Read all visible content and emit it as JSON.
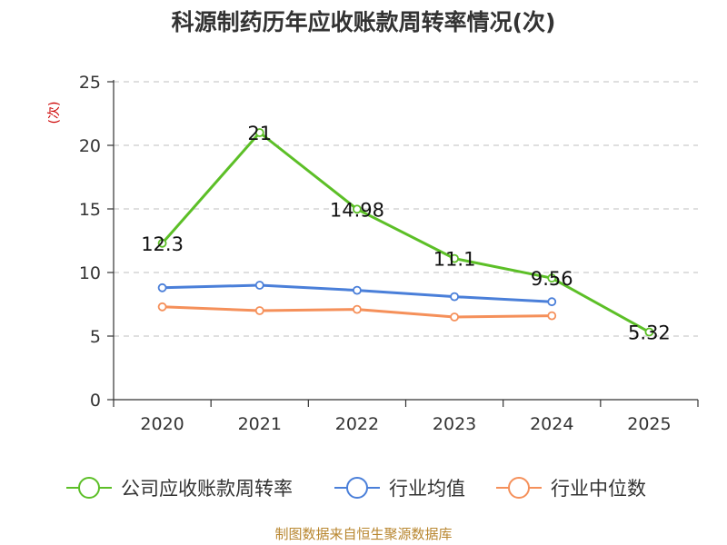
{
  "chart_data": {
    "type": "line",
    "title": "科源制药历年应收账款周转率情况(次)",
    "ylabel": "(次)",
    "xlabel": "",
    "categories": [
      "2020",
      "2021",
      "2022",
      "2023",
      "2024",
      "2025"
    ],
    "ylim": [
      0,
      25
    ],
    "yticks": [
      "0",
      "5",
      "10",
      "15",
      "20",
      "25"
    ],
    "grid": true,
    "legend_position": "bottom",
    "series": [
      {
        "name": "公司应收账款周转率",
        "color": "#5cbf27",
        "values": [
          12.3,
          21,
          14.98,
          11.1,
          9.56,
          5.32
        ],
        "labels": [
          "12.3",
          "21",
          "14.98",
          "11.1",
          "9.56",
          "5.32"
        ]
      },
      {
        "name": "行业均值",
        "color": "#4a7fd9",
        "values": [
          8.8,
          9.0,
          8.6,
          8.1,
          7.7,
          null
        ]
      },
      {
        "name": "行业中位数",
        "color": "#f5905a",
        "values": [
          7.3,
          7.0,
          7.1,
          6.5,
          6.6,
          null
        ]
      }
    ],
    "source": "制图数据来自恒生聚源数据库"
  }
}
